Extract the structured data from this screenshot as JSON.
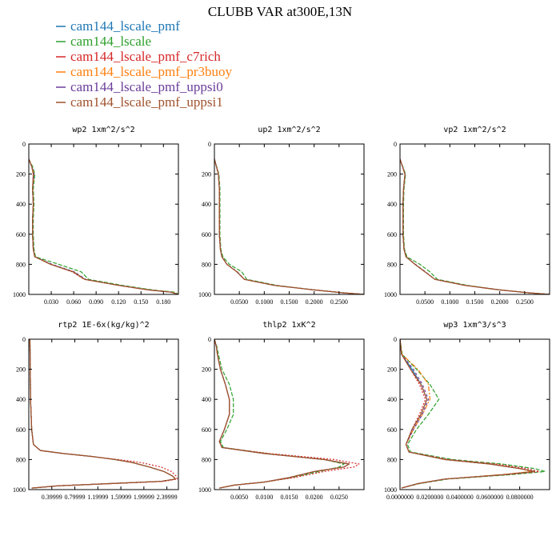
{
  "figure": {
    "title": "CLUBB VAR at300E,13N"
  },
  "legend": [
    {
      "label": "cam144_lscale_pmf",
      "color": "#1f77b4"
    },
    {
      "label": "cam144_lscale",
      "color": "#2ca02c"
    },
    {
      "label": "cam144_lscale_pmf_c7rich",
      "color": "#d62728"
    },
    {
      "label": "cam144_lscale_pmf_pr3buoy",
      "color": "#ff7f0e"
    },
    {
      "label": "cam144_lscale_pmf_uppsi0",
      "color": "#6a3d9a"
    },
    {
      "label": "cam144_lscale_pmf_uppsi1",
      "color": "#a0522d"
    }
  ],
  "chart_data": [
    {
      "type": "line",
      "title": "wp2  1xm^2/s^2",
      "xlim": [
        0,
        0.2
      ],
      "ylim": [
        0,
        1000
      ],
      "y_reversed": true,
      "xtick_values": [
        0.03,
        0.06,
        0.09,
        0.12,
        0.15,
        0.18
      ],
      "xtick_labels": [
        "0.030",
        "0.060",
        "0.090",
        "0.120",
        "0.150",
        "0.180"
      ],
      "ytick_values": [
        0,
        200,
        400,
        600,
        800,
        1000
      ],
      "ytick_labels": [
        "0",
        "200",
        "400",
        "600",
        "800",
        "1000"
      ],
      "y": [
        100,
        150,
        200,
        300,
        400,
        500,
        600,
        700,
        750,
        800,
        850,
        900,
        940,
        970,
        985,
        1000
      ],
      "series": [
        {
          "x": [
            0,
            0.004,
            0.007,
            0.005,
            0.006,
            0.005,
            0.005,
            0.006,
            0.008,
            0.03,
            0.06,
            0.075,
            0.12,
            0.16,
            0.19,
            0.2
          ]
        },
        {
          "x": [
            0,
            0.005,
            0.008,
            0.006,
            0.007,
            0.006,
            0.006,
            0.007,
            0.009,
            0.04,
            0.07,
            0.08,
            0.125,
            0.165,
            0.195,
            0.2
          ]
        },
        {
          "x": [
            0,
            0.004,
            0.006,
            0.005,
            0.006,
            0.005,
            0.005,
            0.006,
            0.008,
            0.03,
            0.058,
            0.074,
            0.12,
            0.16,
            0.19,
            0.2
          ]
        },
        {
          "x": [
            0,
            0.004,
            0.007,
            0.005,
            0.006,
            0.005,
            0.005,
            0.006,
            0.008,
            0.03,
            0.06,
            0.075,
            0.12,
            0.16,
            0.19,
            0.2
          ]
        },
        {
          "x": [
            0,
            0.004,
            0.007,
            0.005,
            0.006,
            0.005,
            0.005,
            0.006,
            0.008,
            0.031,
            0.061,
            0.076,
            0.12,
            0.16,
            0.19,
            0.2
          ]
        },
        {
          "x": [
            0,
            0.004,
            0.006,
            0.005,
            0.006,
            0.005,
            0.005,
            0.006,
            0.008,
            0.029,
            0.059,
            0.075,
            0.12,
            0.16,
            0.19,
            0.2
          ]
        }
      ]
    },
    {
      "type": "line",
      "title": "up2  1xm^2/s^2",
      "xlim": [
        0,
        0.3
      ],
      "ylim": [
        0,
        1000
      ],
      "y_reversed": true,
      "xtick_values": [
        0.05,
        0.1,
        0.15,
        0.2,
        0.25
      ],
      "xtick_labels": [
        "0.0500",
        "0.1000",
        "0.1500",
        "0.2000",
        "0.2500"
      ],
      "ytick_values": [
        0,
        200,
        400,
        600,
        800,
        1000
      ],
      "ytick_labels": [
        "0",
        "200",
        "400",
        "600",
        "800",
        "1000"
      ],
      "y": [
        100,
        200,
        300,
        400,
        500,
        600,
        700,
        750,
        800,
        850,
        900,
        940,
        970,
        990,
        1000
      ],
      "series": [
        {
          "x": [
            0,
            0.008,
            0.01,
            0.01,
            0.01,
            0.01,
            0.012,
            0.015,
            0.025,
            0.045,
            0.06,
            0.12,
            0.2,
            0.26,
            0.3
          ]
        },
        {
          "x": [
            0,
            0.009,
            0.011,
            0.011,
            0.011,
            0.011,
            0.013,
            0.017,
            0.03,
            0.055,
            0.065,
            0.125,
            0.2,
            0.26,
            0.3
          ]
        },
        {
          "x": [
            0,
            0.008,
            0.01,
            0.01,
            0.01,
            0.01,
            0.012,
            0.015,
            0.025,
            0.045,
            0.06,
            0.12,
            0.2,
            0.26,
            0.3
          ]
        },
        {
          "x": [
            0,
            0.008,
            0.01,
            0.01,
            0.01,
            0.01,
            0.012,
            0.015,
            0.025,
            0.045,
            0.06,
            0.12,
            0.2,
            0.26,
            0.3
          ]
        },
        {
          "x": [
            0,
            0.008,
            0.01,
            0.01,
            0.01,
            0.01,
            0.012,
            0.015,
            0.025,
            0.046,
            0.06,
            0.12,
            0.2,
            0.26,
            0.3
          ]
        },
        {
          "x": [
            0,
            0.008,
            0.01,
            0.01,
            0.01,
            0.01,
            0.012,
            0.015,
            0.025,
            0.045,
            0.06,
            0.12,
            0.2,
            0.26,
            0.3
          ]
        }
      ]
    },
    {
      "type": "line",
      "title": "vp2  1xm^2/s^2",
      "xlim": [
        0,
        0.3
      ],
      "ylim": [
        0,
        1000
      ],
      "y_reversed": true,
      "xtick_values": [
        0.05,
        0.1,
        0.15,
        0.2,
        0.25
      ],
      "xtick_labels": [
        "0.0500",
        "0.1000",
        "0.1500",
        "0.2000",
        "0.2500"
      ],
      "ytick_values": [
        0,
        200,
        400,
        600,
        800,
        1000
      ],
      "ytick_labels": [
        "0",
        "200",
        "400",
        "600",
        "800",
        "1000"
      ],
      "y": [
        100,
        200,
        300,
        400,
        500,
        600,
        700,
        750,
        800,
        850,
        900,
        940,
        970,
        990,
        1000
      ],
      "series": [
        {
          "x": [
            0,
            0.01,
            0.007,
            0.006,
            0.006,
            0.006,
            0.008,
            0.012,
            0.03,
            0.05,
            0.07,
            0.13,
            0.2,
            0.26,
            0.3
          ]
        },
        {
          "x": [
            0,
            0.011,
            0.008,
            0.007,
            0.007,
            0.007,
            0.009,
            0.014,
            0.04,
            0.06,
            0.075,
            0.135,
            0.2,
            0.26,
            0.3
          ]
        },
        {
          "x": [
            0,
            0.01,
            0.007,
            0.006,
            0.006,
            0.006,
            0.008,
            0.012,
            0.03,
            0.05,
            0.07,
            0.13,
            0.2,
            0.26,
            0.3
          ]
        },
        {
          "x": [
            0,
            0.01,
            0.007,
            0.006,
            0.006,
            0.006,
            0.008,
            0.012,
            0.03,
            0.05,
            0.07,
            0.13,
            0.2,
            0.26,
            0.3
          ]
        },
        {
          "x": [
            0,
            0.01,
            0.007,
            0.006,
            0.006,
            0.006,
            0.008,
            0.012,
            0.031,
            0.051,
            0.07,
            0.13,
            0.2,
            0.26,
            0.3
          ]
        },
        {
          "x": [
            0,
            0.01,
            0.007,
            0.006,
            0.006,
            0.006,
            0.008,
            0.012,
            0.03,
            0.05,
            0.07,
            0.13,
            0.2,
            0.26,
            0.3
          ]
        }
      ]
    },
    {
      "type": "line",
      "title": "rtp2  1E-6x(kg/kg)^2",
      "xlim": [
        0,
        2.6
      ],
      "ylim": [
        0,
        1000
      ],
      "y_reversed": true,
      "xtick_values": [
        0.4,
        0.8,
        1.2,
        1.6,
        2.0,
        2.4
      ],
      "xtick_labels": [
        "0.39999",
        "0.79999",
        "1.19999",
        "1.59999",
        "1.99999",
        "2.39999"
      ],
      "ytick_values": [
        0,
        200,
        400,
        600,
        800,
        1000
      ],
      "ytick_labels": [
        "0",
        "200",
        "400",
        "600",
        "800",
        "1000"
      ],
      "y": [
        0,
        400,
        600,
        700,
        740,
        760,
        780,
        800,
        820,
        850,
        880,
        910,
        930,
        945,
        960,
        975,
        990
      ],
      "series": [
        {
          "x": [
            0.02,
            0.03,
            0.05,
            0.08,
            0.2,
            0.6,
            1.1,
            1.5,
            1.8,
            2.1,
            2.35,
            2.5,
            2.55,
            2.3,
            1.4,
            0.5,
            0.05
          ]
        },
        {
          "x": [
            0.02,
            0.03,
            0.05,
            0.08,
            0.2,
            0.6,
            1.1,
            1.5,
            1.8,
            2.1,
            2.35,
            2.5,
            2.55,
            2.3,
            1.4,
            0.5,
            0.05
          ]
        },
        {
          "x": [
            0.02,
            0.03,
            0.05,
            0.08,
            0.2,
            0.6,
            1.1,
            1.55,
            1.95,
            2.3,
            2.48,
            2.56,
            2.58,
            2.35,
            1.45,
            0.5,
            0.05
          ]
        },
        {
          "x": [
            0.02,
            0.03,
            0.05,
            0.08,
            0.2,
            0.6,
            1.1,
            1.5,
            1.8,
            2.1,
            2.35,
            2.5,
            2.55,
            2.3,
            1.4,
            0.5,
            0.05
          ]
        },
        {
          "x": [
            0.02,
            0.03,
            0.05,
            0.08,
            0.2,
            0.6,
            1.1,
            1.5,
            1.8,
            2.1,
            2.35,
            2.5,
            2.55,
            2.3,
            1.4,
            0.5,
            0.05
          ]
        },
        {
          "x": [
            0.02,
            0.03,
            0.05,
            0.08,
            0.2,
            0.6,
            1.1,
            1.5,
            1.8,
            2.1,
            2.35,
            2.5,
            2.55,
            2.3,
            1.4,
            0.5,
            0.05
          ]
        }
      ]
    },
    {
      "type": "line",
      "title": "thlp2  1xK^2",
      "xlim": [
        0,
        0.03
      ],
      "ylim": [
        0,
        1000
      ],
      "y_reversed": true,
      "xtick_values": [
        0.005,
        0.01,
        0.015,
        0.02,
        0.025
      ],
      "xtick_labels": [
        "0.0050",
        "0.0100",
        "0.0150",
        "0.0200",
        "0.0250"
      ],
      "ytick_values": [
        0,
        200,
        400,
        600,
        800,
        1000
      ],
      "ytick_labels": [
        "0",
        "200",
        "400",
        "600",
        "800",
        "1000"
      ],
      "y": [
        0,
        50,
        100,
        200,
        300,
        400,
        500,
        600,
        680,
        720,
        760,
        800,
        830,
        850,
        880,
        920,
        950,
        970,
        990
      ],
      "series": [
        {
          "x": [
            0,
            0.0004,
            0.0006,
            0.0012,
            0.0022,
            0.003,
            0.003,
            0.002,
            0.001,
            0.0015,
            0.01,
            0.022,
            0.027,
            0.026,
            0.02,
            0.015,
            0.01,
            0.004,
            0.001
          ]
        },
        {
          "x": [
            0,
            0.0005,
            0.0008,
            0.0015,
            0.003,
            0.0038,
            0.0038,
            0.0025,
            0.0012,
            0.0018,
            0.0105,
            0.022,
            0.026,
            0.025,
            0.021,
            0.0155,
            0.01,
            0.004,
            0.001
          ]
        },
        {
          "x": [
            0,
            0.0004,
            0.0006,
            0.0012,
            0.0022,
            0.003,
            0.003,
            0.002,
            0.001,
            0.0015,
            0.011,
            0.024,
            0.029,
            0.028,
            0.022,
            0.016,
            0.01,
            0.004,
            0.001
          ]
        },
        {
          "x": [
            0,
            0.0004,
            0.0006,
            0.0012,
            0.0022,
            0.003,
            0.003,
            0.002,
            0.001,
            0.0015,
            0.01,
            0.022,
            0.027,
            0.026,
            0.02,
            0.015,
            0.01,
            0.004,
            0.001
          ]
        },
        {
          "x": [
            0,
            0.0004,
            0.0006,
            0.0012,
            0.0022,
            0.003,
            0.003,
            0.002,
            0.001,
            0.0015,
            0.01,
            0.022,
            0.027,
            0.026,
            0.02,
            0.015,
            0.01,
            0.004,
            0.001
          ]
        },
        {
          "x": [
            0,
            0.0004,
            0.0006,
            0.0012,
            0.0022,
            0.003,
            0.003,
            0.002,
            0.001,
            0.0015,
            0.01,
            0.022,
            0.027,
            0.026,
            0.02,
            0.015,
            0.01,
            0.004,
            0.001
          ]
        }
      ]
    },
    {
      "type": "line",
      "title": "wp3  1xm^3/s^3",
      "xlim": [
        0,
        0.1
      ],
      "ylim": [
        0,
        1000
      ],
      "y_reversed": true,
      "xtick_values": [
        0,
        0.02,
        0.04,
        0.06,
        0.08
      ],
      "xtick_labels": [
        "0.0000000",
        "0.0200000",
        "0.0400000",
        "0.0600000",
        "0.0800000"
      ],
      "ytick_values": [
        0,
        200,
        400,
        600,
        800,
        1000
      ],
      "ytick_labels": [
        "0",
        "200",
        "400",
        "600",
        "800",
        "1000"
      ],
      "y": [
        0,
        100,
        200,
        300,
        400,
        500,
        600,
        700,
        750,
        800,
        830,
        860,
        880,
        900,
        930,
        960,
        990
      ],
      "series": [
        {
          "x": [
            0,
            0.001,
            0.008,
            0.014,
            0.018,
            0.014,
            0.008,
            0.004,
            0.006,
            0.03,
            0.06,
            0.08,
            0.09,
            0.07,
            0.03,
            0.012,
            0.001
          ]
        },
        {
          "x": [
            0,
            0.0015,
            0.011,
            0.02,
            0.026,
            0.019,
            0.011,
            0.005,
            0.007,
            0.035,
            0.068,
            0.09,
            0.097,
            0.075,
            0.032,
            0.013,
            0.001
          ]
        },
        {
          "x": [
            0,
            0.001,
            0.007,
            0.013,
            0.017,
            0.013,
            0.008,
            0.004,
            0.006,
            0.032,
            0.064,
            0.085,
            0.093,
            0.072,
            0.03,
            0.012,
            0.001
          ]
        },
        {
          "x": [
            0,
            0.0012,
            0.012,
            0.019,
            0.02,
            0.015,
            0.009,
            0.004,
            0.006,
            0.03,
            0.06,
            0.08,
            0.088,
            0.068,
            0.03,
            0.012,
            0.001
          ]
        },
        {
          "x": [
            0,
            0.001,
            0.009,
            0.015,
            0.019,
            0.015,
            0.009,
            0.004,
            0.006,
            0.03,
            0.06,
            0.08,
            0.09,
            0.07,
            0.03,
            0.012,
            0.001
          ]
        },
        {
          "x": [
            0,
            0.001,
            0.007,
            0.014,
            0.018,
            0.014,
            0.008,
            0.004,
            0.006,
            0.03,
            0.06,
            0.08,
            0.09,
            0.07,
            0.03,
            0.012,
            0.001
          ]
        }
      ]
    }
  ]
}
